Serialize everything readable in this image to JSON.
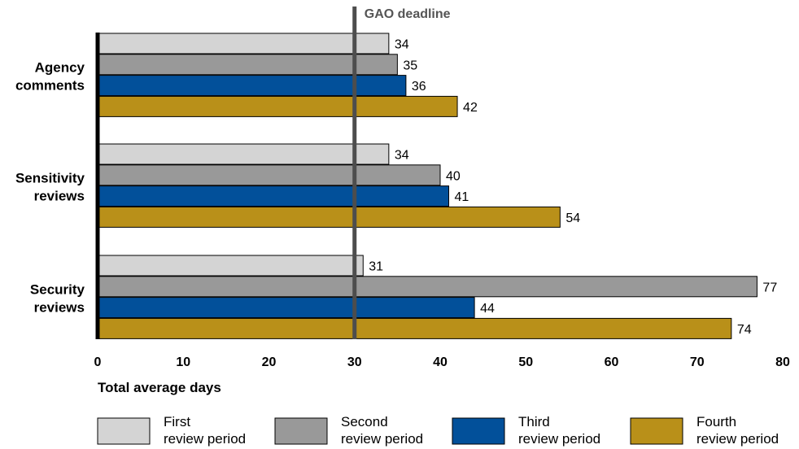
{
  "chart_data": {
    "type": "bar",
    "orientation": "horizontal",
    "categories": [
      [
        "Agency",
        "comments"
      ],
      [
        "Sensitivity",
        "reviews"
      ],
      [
        "Security",
        "reviews"
      ]
    ],
    "series": [
      {
        "name": [
          "First",
          "review period"
        ],
        "color": "#d4d4d4",
        "values": [
          34,
          34,
          31
        ]
      },
      {
        "name": [
          "Second",
          "review period"
        ],
        "color": "#999999",
        "values": [
          35,
          40,
          77
        ]
      },
      {
        "name": [
          "Third",
          "review period"
        ],
        "color": "#02509a",
        "values": [
          36,
          41,
          44
        ]
      },
      {
        "name": [
          "Fourth",
          "review period"
        ],
        "color": "#b99019",
        "values": [
          42,
          54,
          74
        ]
      }
    ],
    "xlabel": "Total average days",
    "xlim": [
      0,
      80
    ],
    "xticks": [
      0,
      10,
      20,
      30,
      40,
      50,
      60,
      70,
      80
    ],
    "reference_line": {
      "value": 30,
      "label": "GAO deadline",
      "color": "#4d4d4d"
    },
    "grid": false,
    "legend_position": "bottom"
  }
}
